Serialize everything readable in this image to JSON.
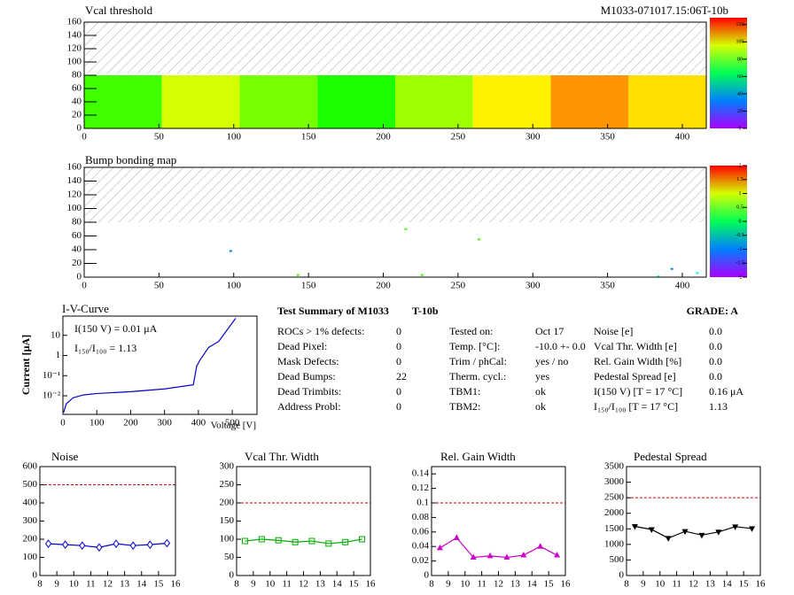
{
  "chart_data": [
    {
      "type": "heatmap",
      "title": "Vcal threshold",
      "subtitle": "M1033-071017.15:06T-10b",
      "xbins": [
        0,
        52,
        104,
        156,
        208,
        260,
        312,
        364,
        416
      ],
      "ybins": [
        0,
        80
      ],
      "values": [
        80,
        96,
        86,
        76,
        90,
        102,
        112,
        104
      ],
      "zlim": [
        0,
        128
      ],
      "zticks": [
        0,
        20,
        40,
        60,
        80,
        100,
        120
      ],
      "xlim": [
        0,
        416
      ],
      "ylim": [
        0,
        160
      ],
      "xticks": [
        0,
        50,
        100,
        150,
        200,
        250,
        300,
        350,
        400
      ],
      "yticks": [
        0,
        20,
        40,
        60,
        80,
        100,
        120,
        140,
        160
      ]
    },
    {
      "type": "scatter",
      "title": "Bump bonding map",
      "x": [
        98,
        143,
        215,
        226,
        264,
        384,
        393,
        410
      ],
      "y": [
        38,
        3,
        70,
        3,
        55,
        1,
        12,
        6
      ],
      "values": [
        -1,
        0.5,
        0.5,
        0.5,
        0.5,
        -0.5,
        -1,
        -0.5
      ],
      "zlim": [
        -2,
        2
      ],
      "zticks": [
        -2,
        -1.5,
        -1,
        -0.5,
        0,
        0.5,
        1,
        1.5,
        2
      ],
      "xlim": [
        0,
        416
      ],
      "ylim": [
        0,
        160
      ],
      "xticks": [
        0,
        50,
        100,
        150,
        200,
        250,
        300,
        350,
        400
      ],
      "yticks": [
        0,
        20,
        40,
        60,
        80,
        100,
        120,
        140,
        160
      ]
    },
    {
      "type": "line",
      "title": "I-V-Curve",
      "xlabel": "Voltage [V]",
      "ylabel": "Current [μA]",
      "ylog": true,
      "color": "#0000cc",
      "x": [
        2,
        10,
        30,
        60,
        100,
        200,
        300,
        385,
        395,
        405,
        430,
        460,
        510
      ],
      "values": [
        0.0015,
        0.004,
        0.008,
        0.011,
        0.013,
        0.016,
        0.022,
        0.035,
        0.3,
        0.6,
        2.5,
        5,
        70
      ],
      "annotations": [
        "I(150 V) = 0.01 μA",
        "I₁₅₀/I₁₀₀ =  1.13"
      ],
      "xlim": [
        0,
        573
      ],
      "ylim": [
        0.0012,
        90
      ],
      "xticks": [
        0,
        100,
        200,
        300,
        400,
        500
      ],
      "yticks": [
        {
          "value": 0.01,
          "label": "10⁻²"
        },
        {
          "value": 0.1,
          "label": "10⁻¹"
        },
        1,
        10
      ]
    },
    {
      "type": "line",
      "title": "Noise",
      "color": "#0000cc",
      "marker": "diamond",
      "threshold": 500,
      "x": [
        8.5,
        9.5,
        10.5,
        11.5,
        12.5,
        13.5,
        14.5,
        15.5
      ],
      "values": [
        175,
        170,
        165,
        155,
        175,
        165,
        170,
        178
      ],
      "xlim": [
        8,
        16
      ],
      "xticks": [
        8,
        9,
        10,
        11,
        12,
        13,
        14,
        15,
        16
      ],
      "ylim": [
        0,
        600
      ],
      "yticks": [
        0,
        100,
        200,
        300,
        400,
        500,
        600
      ]
    },
    {
      "type": "line",
      "title": "Vcal Thr. Width",
      "color": "#00aa00",
      "marker": "square",
      "threshold": 200,
      "x": [
        8.5,
        9.5,
        10.5,
        11.5,
        12.5,
        13.5,
        14.5,
        15.5
      ],
      "values": [
        95,
        100,
        97,
        92,
        95,
        88,
        92,
        100
      ],
      "xlim": [
        8,
        16
      ],
      "xticks": [
        8,
        9,
        10,
        11,
        12,
        13,
        14,
        15,
        16
      ],
      "ylim": [
        0,
        300
      ],
      "yticks": [
        0,
        50,
        100,
        150,
        200,
        250,
        300
      ]
    },
    {
      "type": "line",
      "title": "Rel. Gain Width",
      "color": "#cc00cc",
      "marker": "triangle",
      "threshold": 0.1,
      "x": [
        8.5,
        9.5,
        10.5,
        11.5,
        12.5,
        13.5,
        14.5,
        15.5
      ],
      "values": [
        0.038,
        0.052,
        0.025,
        0.027,
        0.025,
        0.028,
        0.04,
        0.028
      ],
      "xlim": [
        8,
        16
      ],
      "xticks": [
        8,
        9,
        10,
        11,
        12,
        13,
        14,
        15,
        16
      ],
      "ylim": [
        0,
        0.15
      ],
      "yticks": [
        0,
        0.02,
        0.04,
        0.06,
        0.08,
        0.1,
        0.12,
        0.14
      ]
    },
    {
      "type": "line",
      "title": "Pedestal Spread",
      "color": "#000000",
      "marker": "triangle-down",
      "threshold": 2500,
      "x": [
        8.5,
        9.5,
        10.5,
        11.5,
        12.5,
        13.5,
        14.5,
        15.5
      ],
      "values": [
        1580,
        1480,
        1200,
        1420,
        1300,
        1400,
        1570,
        1510
      ],
      "xlim": [
        8,
        16
      ],
      "xticks": [
        8,
        9,
        10,
        11,
        12,
        13,
        14,
        15,
        16
      ],
      "ylim": [
        0,
        3500
      ],
      "yticks": [
        0,
        500,
        1000,
        1500,
        2000,
        2500,
        3000,
        3500
      ]
    }
  ],
  "summary": {
    "title": "Test Summary of M1033",
    "tag": "T-10b",
    "grade": "GRADE:  A",
    "col1": [
      [
        "ROCs > 1% defects:",
        "0"
      ],
      [
        "Dead Pixel:",
        "0"
      ],
      [
        "Mask Defects:",
        "0"
      ],
      [
        "Dead Bumps:",
        "22"
      ],
      [
        "Dead Trimbits:",
        "0"
      ],
      [
        "Address Probl:",
        "0"
      ]
    ],
    "col2": [
      [
        "Tested on:",
        "Oct 17"
      ],
      [
        "Temp. [°C]:",
        "-10.0 +- 0.0"
      ],
      [
        "Trim / phCal:",
        "yes / no"
      ],
      [
        "Therm. cycl.:",
        "yes"
      ],
      [
        "TBM1:",
        "ok"
      ],
      [
        "TBM2:",
        "ok"
      ]
    ],
    "col3": [
      [
        "Noise [e]",
        "0.0"
      ],
      [
        "Vcal Thr. Width [e]",
        "0.0"
      ],
      [
        "Rel. Gain Width [%]",
        "0.0"
      ],
      [
        "Pedestal Spread [e]",
        "0.0"
      ],
      [
        "I(150 V) [T = 17 °C]",
        "0.16 μA"
      ],
      [
        "I₁₅₀/I₁₀₀  [T = 17 °C]",
        "1.13"
      ]
    ]
  }
}
